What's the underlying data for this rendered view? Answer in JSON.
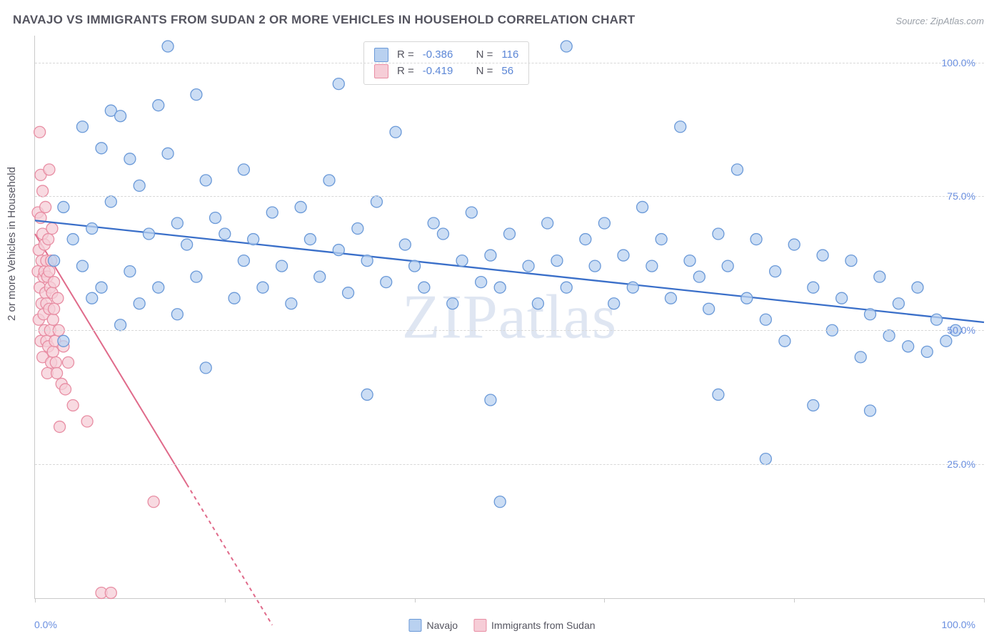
{
  "title": "NAVAJO VS IMMIGRANTS FROM SUDAN 2 OR MORE VEHICLES IN HOUSEHOLD CORRELATION CHART",
  "source": {
    "label": "Source:",
    "value": "ZipAtlas.com"
  },
  "y_axis_label": "2 or more Vehicles in Household",
  "watermark": "ZIPatlas",
  "chart": {
    "type": "scatter",
    "xlim": [
      0,
      100
    ],
    "ylim": [
      0,
      105
    ],
    "y_ticks": [
      25,
      50,
      75,
      100
    ],
    "y_tick_labels": [
      "25.0%",
      "50.0%",
      "75.0%",
      "100.0%"
    ],
    "x_ticks": [
      0,
      20,
      40,
      60,
      80,
      100
    ],
    "x_tick_labels_ends": [
      "0.0%",
      "100.0%"
    ],
    "grid_color": "#d8d8d8",
    "background_color": "#ffffff",
    "marker_radius": 8,
    "marker_stroke_width": 1.3,
    "series": [
      {
        "name": "Navajo",
        "fill": "#b9d1f0",
        "stroke": "#6a99d8",
        "line_color": "#3a6fc9",
        "line_width": 2.3,
        "trend": {
          "x1": 0,
          "y1": 70.5,
          "x2": 100,
          "y2": 51.5
        },
        "points": [
          [
            2,
            63
          ],
          [
            3,
            48
          ],
          [
            3,
            73
          ],
          [
            4,
            67
          ],
          [
            5,
            88
          ],
          [
            5,
            62
          ],
          [
            6,
            56
          ],
          [
            6,
            69
          ],
          [
            7,
            84
          ],
          [
            7,
            58
          ],
          [
            8,
            91
          ],
          [
            8,
            74
          ],
          [
            9,
            51
          ],
          [
            9,
            90
          ],
          [
            10,
            82
          ],
          [
            10,
            61
          ],
          [
            11,
            77
          ],
          [
            11,
            55
          ],
          [
            12,
            68
          ],
          [
            13,
            92
          ],
          [
            13,
            58
          ],
          [
            14,
            103
          ],
          [
            14,
            83
          ],
          [
            15,
            70
          ],
          [
            15,
            53
          ],
          [
            16,
            66
          ],
          [
            17,
            94
          ],
          [
            17,
            60
          ],
          [
            18,
            78
          ],
          [
            18,
            43
          ],
          [
            19,
            71
          ],
          [
            20,
            68
          ],
          [
            21,
            56
          ],
          [
            22,
            63
          ],
          [
            22,
            80
          ],
          [
            23,
            67
          ],
          [
            24,
            58
          ],
          [
            25,
            72
          ],
          [
            26,
            62
          ],
          [
            27,
            55
          ],
          [
            28,
            73
          ],
          [
            29,
            67
          ],
          [
            30,
            60
          ],
          [
            31,
            78
          ],
          [
            32,
            65
          ],
          [
            32,
            96
          ],
          [
            33,
            57
          ],
          [
            34,
            69
          ],
          [
            35,
            63
          ],
          [
            35,
            38
          ],
          [
            36,
            74
          ],
          [
            37,
            59
          ],
          [
            38,
            87
          ],
          [
            39,
            66
          ],
          [
            40,
            62
          ],
          [
            41,
            58
          ],
          [
            42,
            70
          ],
          [
            43,
            68
          ],
          [
            44,
            55
          ],
          [
            45,
            63
          ],
          [
            46,
            72
          ],
          [
            47,
            59
          ],
          [
            48,
            37
          ],
          [
            48,
            64
          ],
          [
            49,
            58
          ],
          [
            49,
            18
          ],
          [
            50,
            68
          ],
          [
            52,
            62
          ],
          [
            53,
            55
          ],
          [
            54,
            70
          ],
          [
            55,
            63
          ],
          [
            56,
            58
          ],
          [
            56,
            103
          ],
          [
            58,
            67
          ],
          [
            59,
            62
          ],
          [
            60,
            70
          ],
          [
            61,
            55
          ],
          [
            62,
            64
          ],
          [
            63,
            58
          ],
          [
            64,
            73
          ],
          [
            65,
            62
          ],
          [
            66,
            67
          ],
          [
            67,
            56
          ],
          [
            68,
            88
          ],
          [
            69,
            63
          ],
          [
            70,
            60
          ],
          [
            71,
            54
          ],
          [
            72,
            68
          ],
          [
            72,
            38
          ],
          [
            73,
            62
          ],
          [
            74,
            80
          ],
          [
            75,
            56
          ],
          [
            76,
            67
          ],
          [
            77,
            52
          ],
          [
            77,
            26
          ],
          [
            78,
            61
          ],
          [
            79,
            48
          ],
          [
            80,
            66
          ],
          [
            82,
            58
          ],
          [
            82,
            36
          ],
          [
            83,
            64
          ],
          [
            84,
            50
          ],
          [
            85,
            56
          ],
          [
            86,
            63
          ],
          [
            87,
            45
          ],
          [
            88,
            53
          ],
          [
            88,
            35
          ],
          [
            89,
            60
          ],
          [
            90,
            49
          ],
          [
            91,
            55
          ],
          [
            92,
            47
          ],
          [
            93,
            58
          ],
          [
            94,
            46
          ],
          [
            95,
            52
          ],
          [
            96,
            48
          ],
          [
            97,
            50
          ]
        ]
      },
      {
        "name": "Immigrants from Sudan",
        "fill": "#f6cdd7",
        "stroke": "#e88da3",
        "line_color": "#e06a8a",
        "line_width": 2.0,
        "trend": {
          "x1": 0,
          "y1": 68,
          "x2": 25,
          "y2": -5
        },
        "trend_dash_after_x": 16,
        "points": [
          [
            0.3,
            61
          ],
          [
            0.3,
            72
          ],
          [
            0.4,
            52
          ],
          [
            0.4,
            65
          ],
          [
            0.5,
            87
          ],
          [
            0.5,
            58
          ],
          [
            0.6,
            71
          ],
          [
            0.6,
            48
          ],
          [
            0.6,
            79
          ],
          [
            0.7,
            63
          ],
          [
            0.7,
            55
          ],
          [
            0.8,
            68
          ],
          [
            0.8,
            45
          ],
          [
            0.8,
            76
          ],
          [
            0.9,
            60
          ],
          [
            0.9,
            53
          ],
          [
            1.0,
            66
          ],
          [
            1.0,
            50
          ],
          [
            1.0,
            61
          ],
          [
            1.1,
            57
          ],
          [
            1.1,
            73
          ],
          [
            1.2,
            48
          ],
          [
            1.2,
            63
          ],
          [
            1.2,
            55
          ],
          [
            1.3,
            42
          ],
          [
            1.3,
            60
          ],
          [
            1.4,
            67
          ],
          [
            1.4,
            47
          ],
          [
            1.5,
            80
          ],
          [
            1.5,
            54
          ],
          [
            1.5,
            61
          ],
          [
            1.6,
            58
          ],
          [
            1.6,
            50
          ],
          [
            1.7,
            63
          ],
          [
            1.7,
            44
          ],
          [
            1.8,
            57
          ],
          [
            1.8,
            69
          ],
          [
            1.9,
            52
          ],
          [
            1.9,
            46
          ],
          [
            2.0,
            59
          ],
          [
            2.0,
            54
          ],
          [
            2.1,
            48
          ],
          [
            2.2,
            44
          ],
          [
            2.3,
            42
          ],
          [
            2.4,
            56
          ],
          [
            2.5,
            50
          ],
          [
            2.6,
            32
          ],
          [
            2.8,
            40
          ],
          [
            3.0,
            47
          ],
          [
            3.2,
            39
          ],
          [
            3.5,
            44
          ],
          [
            4.0,
            36
          ],
          [
            5.5,
            33
          ],
          [
            7.0,
            1
          ],
          [
            8.0,
            1
          ],
          [
            12.5,
            18
          ]
        ]
      }
    ]
  },
  "stats_box": {
    "rows": [
      {
        "swatch_fill": "#b9d1f0",
        "swatch_stroke": "#6a99d8",
        "r_label": "R =",
        "r_value": "-0.386",
        "n_label": "N =",
        "n_value": "116"
      },
      {
        "swatch_fill": "#f6cdd7",
        "swatch_stroke": "#e88da3",
        "r_label": "R =",
        "r_value": "-0.419",
        "n_label": "N =",
        "n_value": "56"
      }
    ]
  },
  "bottom_legend": {
    "items": [
      {
        "swatch_fill": "#b9d1f0",
        "swatch_stroke": "#6a99d8",
        "label": "Navajo"
      },
      {
        "swatch_fill": "#f6cdd7",
        "swatch_stroke": "#e88da3",
        "label": "Immigrants from Sudan"
      }
    ]
  }
}
